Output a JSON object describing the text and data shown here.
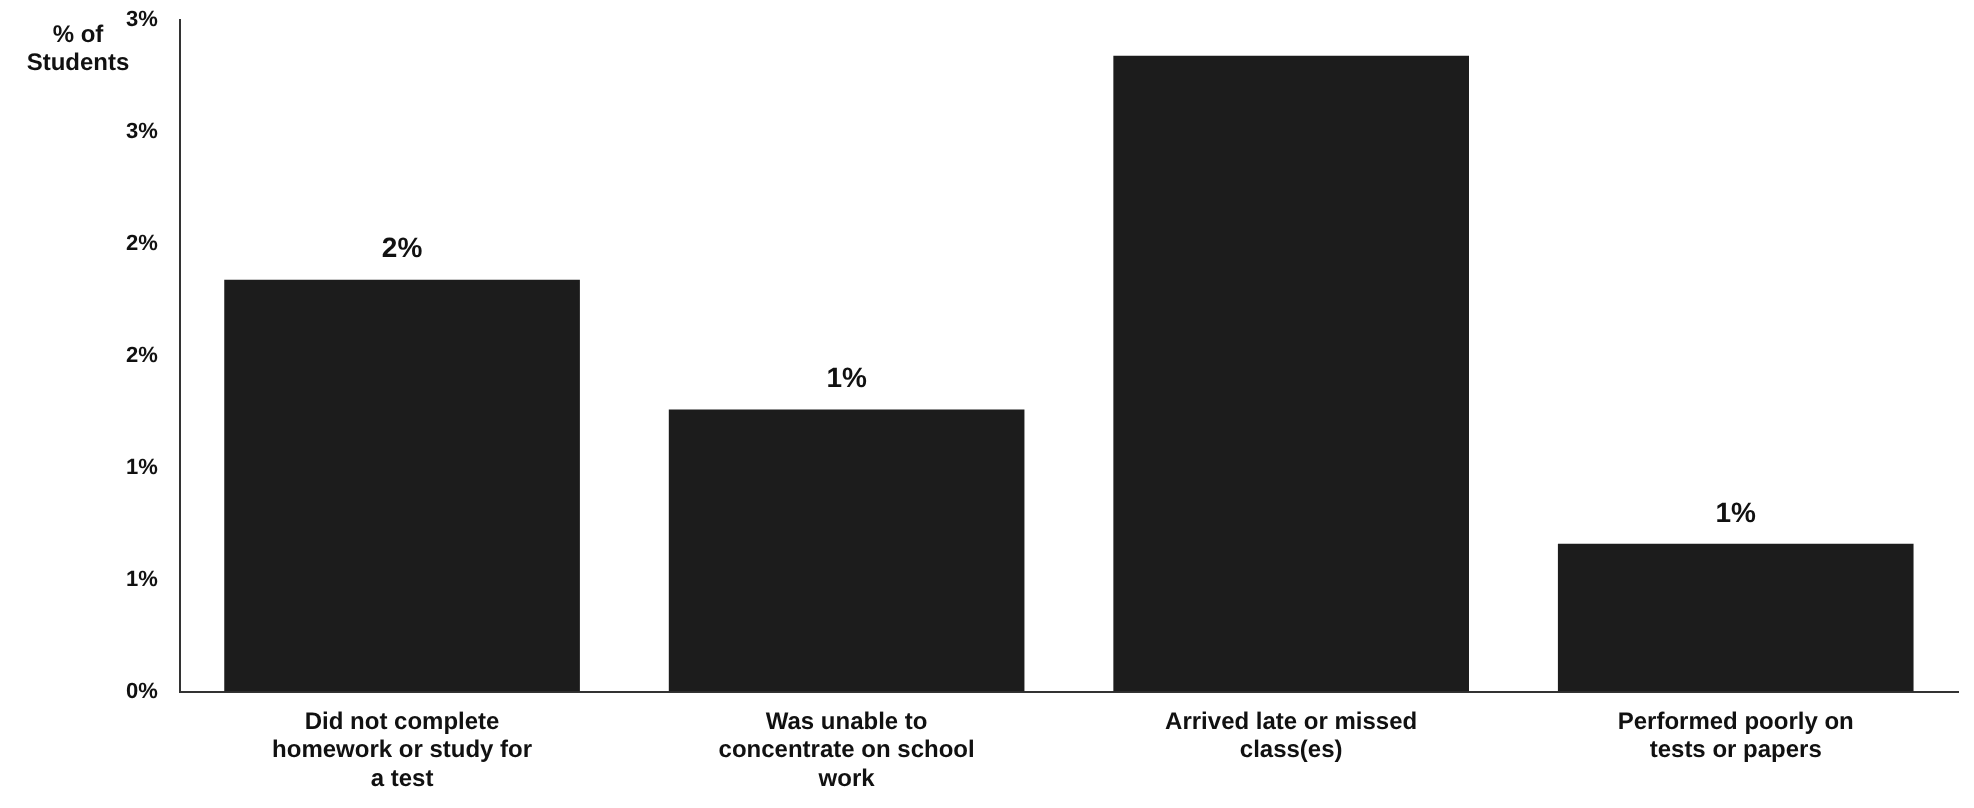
{
  "chart_data": {
    "type": "bar",
    "ylabel": "% of Students",
    "categories": [
      "Did not complete homework or study for a test",
      "Was unable to concentrate on school work",
      "Arrived late or missed class(es)",
      "Performed poorly on tests or papers"
    ],
    "values": [
      1.84,
      1.26,
      2.84,
      0.66
    ],
    "value_labels": [
      "2%",
      "1%",
      null,
      "1%"
    ],
    "color": "#1c1c1c",
    "ylim": [
      0,
      3
    ],
    "yticks": [
      {
        "value": 0,
        "label": "0%"
      },
      {
        "value": 0.5,
        "label": "1%"
      },
      {
        "value": 1,
        "label": "1%"
      },
      {
        "value": 1.5,
        "label": "2%"
      },
      {
        "value": 2,
        "label": "2%"
      },
      {
        "value": 2.5,
        "label": "3%"
      },
      {
        "value": 3,
        "label": "3%"
      }
    ],
    "grid": false,
    "legend": false
  }
}
